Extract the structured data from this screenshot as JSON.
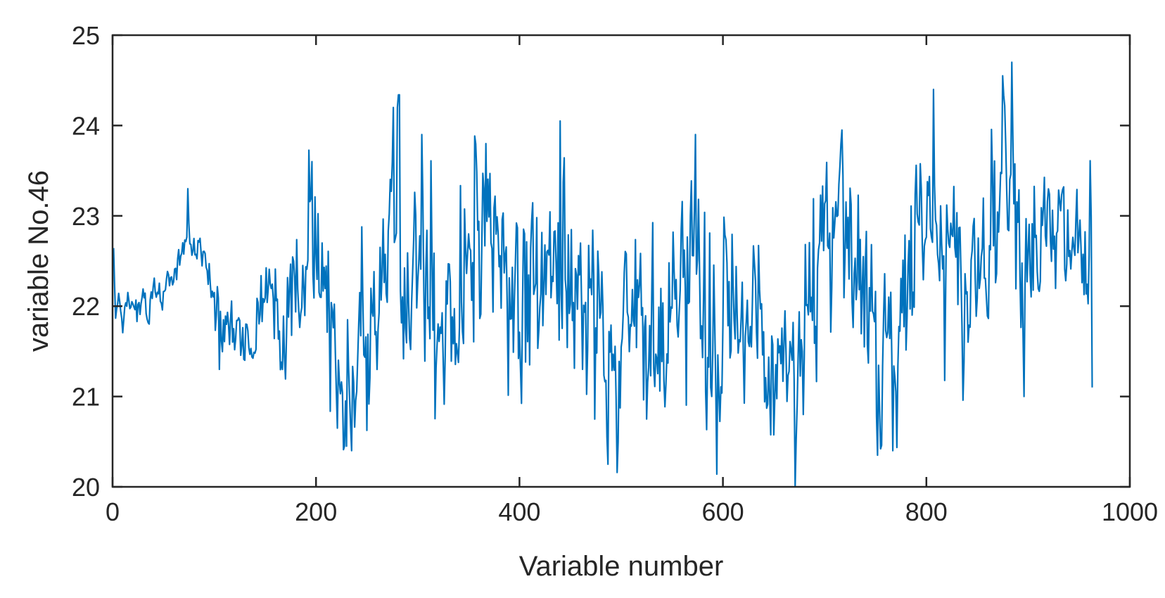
{
  "chart_data": {
    "type": "line",
    "title": "",
    "xlabel": "Variable number",
    "ylabel": "variable No.46",
    "xlim": [
      0,
      1000
    ],
    "ylim": [
      20,
      25
    ],
    "x_ticks": [
      0,
      200,
      400,
      600,
      800,
      1000
    ],
    "y_ticks": [
      20,
      21,
      22,
      23,
      24,
      25
    ],
    "x_tick_labels": [
      "0",
      "200",
      "400",
      "600",
      "800",
      "1000"
    ],
    "y_tick_labels": [
      "20",
      "21",
      "22",
      "23",
      "24",
      "25"
    ],
    "grid": false,
    "legend": "none",
    "series": [
      {
        "color": "#0072BD",
        "x_start": 1,
        "x_step": 1,
        "anchors": [
          [
            1,
            22.6
          ],
          [
            3,
            21.8
          ],
          [
            6,
            22.1
          ],
          [
            10,
            21.8
          ],
          [
            15,
            22.2
          ],
          [
            20,
            22.0
          ],
          [
            25,
            21.9
          ],
          [
            30,
            22.1
          ],
          [
            35,
            21.9
          ],
          [
            40,
            22.2
          ],
          [
            45,
            22.1
          ],
          [
            50,
            22.2
          ],
          [
            55,
            22.3
          ],
          [
            60,
            22.3
          ],
          [
            65,
            22.5
          ],
          [
            70,
            22.7
          ],
          [
            73,
            22.9
          ],
          [
            76,
            22.7
          ],
          [
            80,
            22.6
          ],
          [
            85,
            22.5
          ],
          [
            90,
            22.6
          ],
          [
            95,
            22.2
          ],
          [
            100,
            22.0
          ],
          [
            105,
            21.9
          ],
          [
            110,
            21.6
          ],
          [
            115,
            21.8
          ],
          [
            120,
            21.7
          ],
          [
            125,
            21.9
          ],
          [
            130,
            21.7
          ],
          [
            135,
            21.6
          ],
          [
            140,
            21.8
          ],
          [
            145,
            22.0
          ],
          [
            150,
            22.3
          ],
          [
            155,
            22.1
          ],
          [
            160,
            22.0
          ],
          [
            165,
            21.4
          ],
          [
            170,
            21.7
          ],
          [
            175,
            22.4
          ],
          [
            180,
            22.2
          ],
          [
            185,
            22.5
          ],
          [
            190,
            22.3
          ],
          [
            195,
            22.8
          ],
          [
            200,
            22.6
          ],
          [
            205,
            22.3
          ],
          [
            210,
            22.0
          ],
          [
            215,
            21.8
          ],
          [
            220,
            21.6
          ],
          [
            225,
            21.2
          ],
          [
            230,
            21.0
          ],
          [
            235,
            21.1
          ],
          [
            240,
            21.5
          ],
          [
            245,
            21.7
          ],
          [
            250,
            21.5
          ],
          [
            255,
            21.8
          ],
          [
            260,
            22.0
          ],
          [
            265,
            22.1
          ],
          [
            270,
            22.5
          ],
          [
            275,
            23.4
          ],
          [
            280,
            23.3
          ],
          [
            285,
            22.4
          ],
          [
            290,
            22.3
          ],
          [
            295,
            22.5
          ],
          [
            300,
            22.6
          ],
          [
            305,
            22.8
          ],
          [
            310,
            22.1
          ],
          [
            315,
            21.8
          ],
          [
            320,
            21.6
          ],
          [
            325,
            21.8
          ],
          [
            330,
            22.0
          ],
          [
            335,
            22.1
          ],
          [
            340,
            21.9
          ],
          [
            345,
            22.1
          ],
          [
            350,
            22.4
          ],
          [
            355,
            22.8
          ],
          [
            360,
            22.9
          ],
          [
            365,
            22.7
          ],
          [
            370,
            22.9
          ],
          [
            375,
            22.8
          ],
          [
            380,
            22.6
          ],
          [
            385,
            22.4
          ],
          [
            390,
            22.1
          ],
          [
            395,
            21.9
          ],
          [
            400,
            22.1
          ],
          [
            405,
            22.2
          ],
          [
            410,
            22.0
          ],
          [
            415,
            22.1
          ],
          [
            420,
            22.3
          ],
          [
            425,
            22.2
          ],
          [
            430,
            22.4
          ],
          [
            435,
            22.6
          ],
          [
            440,
            22.5
          ],
          [
            445,
            22.3
          ],
          [
            450,
            22.2
          ],
          [
            455,
            22.0
          ],
          [
            460,
            22.2
          ],
          [
            465,
            22.1
          ],
          [
            470,
            22.0
          ],
          [
            475,
            21.8
          ],
          [
            480,
            21.6
          ],
          [
            485,
            21.3
          ],
          [
            490,
            21.4
          ],
          [
            495,
            21.6
          ],
          [
            500,
            21.9
          ],
          [
            505,
            22.0
          ],
          [
            510,
            21.8
          ],
          [
            515,
            22.0
          ],
          [
            520,
            21.9
          ],
          [
            525,
            21.6
          ],
          [
            530,
            21.4
          ],
          [
            535,
            21.5
          ],
          [
            540,
            21.8
          ],
          [
            545,
            22.0
          ],
          [
            550,
            22.1
          ],
          [
            555,
            22.3
          ],
          [
            560,
            22.4
          ],
          [
            565,
            22.7
          ],
          [
            570,
            22.8
          ],
          [
            575,
            22.5
          ],
          [
            580,
            22.0
          ],
          [
            585,
            21.7
          ],
          [
            590,
            21.6
          ],
          [
            595,
            21.5
          ],
          [
            600,
            21.8
          ],
          [
            605,
            21.6
          ],
          [
            610,
            21.5
          ],
          [
            615,
            21.7
          ],
          [
            620,
            22.0
          ],
          [
            625,
            22.2
          ],
          [
            630,
            22.1
          ],
          [
            635,
            21.9
          ],
          [
            640,
            21.7
          ],
          [
            645,
            21.8
          ],
          [
            650,
            21.5
          ],
          [
            655,
            21.3
          ],
          [
            660,
            21.4
          ],
          [
            665,
            21.3
          ],
          [
            670,
            21.5
          ],
          [
            675,
            21.7
          ],
          [
            680,
            21.9
          ],
          [
            685,
            22.1
          ],
          [
            690,
            22.3
          ],
          [
            695,
            22.5
          ],
          [
            700,
            22.6
          ],
          [
            705,
            22.8
          ],
          [
            710,
            22.7
          ],
          [
            715,
            22.8
          ],
          [
            720,
            22.5
          ],
          [
            725,
            22.3
          ],
          [
            730,
            22.4
          ],
          [
            735,
            22.1
          ],
          [
            740,
            21.9
          ],
          [
            745,
            21.6
          ],
          [
            750,
            21.2
          ],
          [
            755,
            21.1
          ],
          [
            760,
            21.3
          ],
          [
            765,
            21.5
          ],
          [
            770,
            21.4
          ],
          [
            775,
            21.7
          ],
          [
            780,
            22.0
          ],
          [
            785,
            22.4
          ],
          [
            790,
            22.8
          ],
          [
            795,
            23.0
          ],
          [
            800,
            23.1
          ],
          [
            805,
            23.3
          ],
          [
            810,
            23.1
          ],
          [
            815,
            22.7
          ],
          [
            820,
            22.6
          ],
          [
            825,
            22.4
          ],
          [
            830,
            22.2
          ],
          [
            835,
            22.1
          ],
          [
            840,
            22.0
          ],
          [
            845,
            22.3
          ],
          [
            850,
            22.5
          ],
          [
            855,
            22.7
          ],
          [
            860,
            22.9
          ],
          [
            865,
            23.1
          ],
          [
            870,
            23.2
          ],
          [
            875,
            23.5
          ],
          [
            880,
            23.8
          ],
          [
            885,
            23.7
          ],
          [
            890,
            22.9
          ],
          [
            895,
            22.6
          ],
          [
            900,
            22.8
          ],
          [
            905,
            22.7
          ],
          [
            910,
            22.8
          ],
          [
            915,
            22.6
          ],
          [
            920,
            22.7
          ],
          [
            925,
            22.5
          ],
          [
            930,
            22.8
          ],
          [
            935,
            22.6
          ],
          [
            940,
            22.7
          ],
          [
            945,
            22.8
          ],
          [
            950,
            22.6
          ],
          [
            955,
            22.5
          ],
          [
            960,
            22.4
          ],
          [
            963,
            22.6
          ]
        ],
        "noise": [
          [
            1,
            0.1
          ],
          [
            60,
            0.12
          ],
          [
            90,
            0.16
          ],
          [
            105,
            0.22
          ],
          [
            150,
            0.22
          ],
          [
            165,
            0.55
          ],
          [
            270,
            0.65
          ],
          [
            310,
            0.75
          ],
          [
            500,
            0.72
          ],
          [
            700,
            0.7
          ],
          [
            820,
            0.65
          ],
          [
            880,
            0.55
          ],
          [
            963,
            0.62
          ]
        ],
        "extremes": [
          [
            74,
            23.3
          ],
          [
            105,
            21.3
          ],
          [
            196,
            23.6
          ],
          [
            230,
            20.45
          ],
          [
            235,
            20.4
          ],
          [
            276,
            24.2
          ],
          [
            280,
            24.2
          ],
          [
            304,
            23.9
          ],
          [
            367,
            23.8
          ],
          [
            440,
            24.05
          ],
          [
            487,
            20.25
          ],
          [
            573,
            23.9
          ],
          [
            717,
            23.95
          ],
          [
            752,
            20.35
          ],
          [
            767,
            20.4
          ],
          [
            807,
            24.4
          ],
          [
            875,
            24.55
          ],
          [
            884,
            24.7
          ],
          [
            896,
            21.0
          ],
          [
            963,
            21.1
          ]
        ]
      }
    ]
  }
}
